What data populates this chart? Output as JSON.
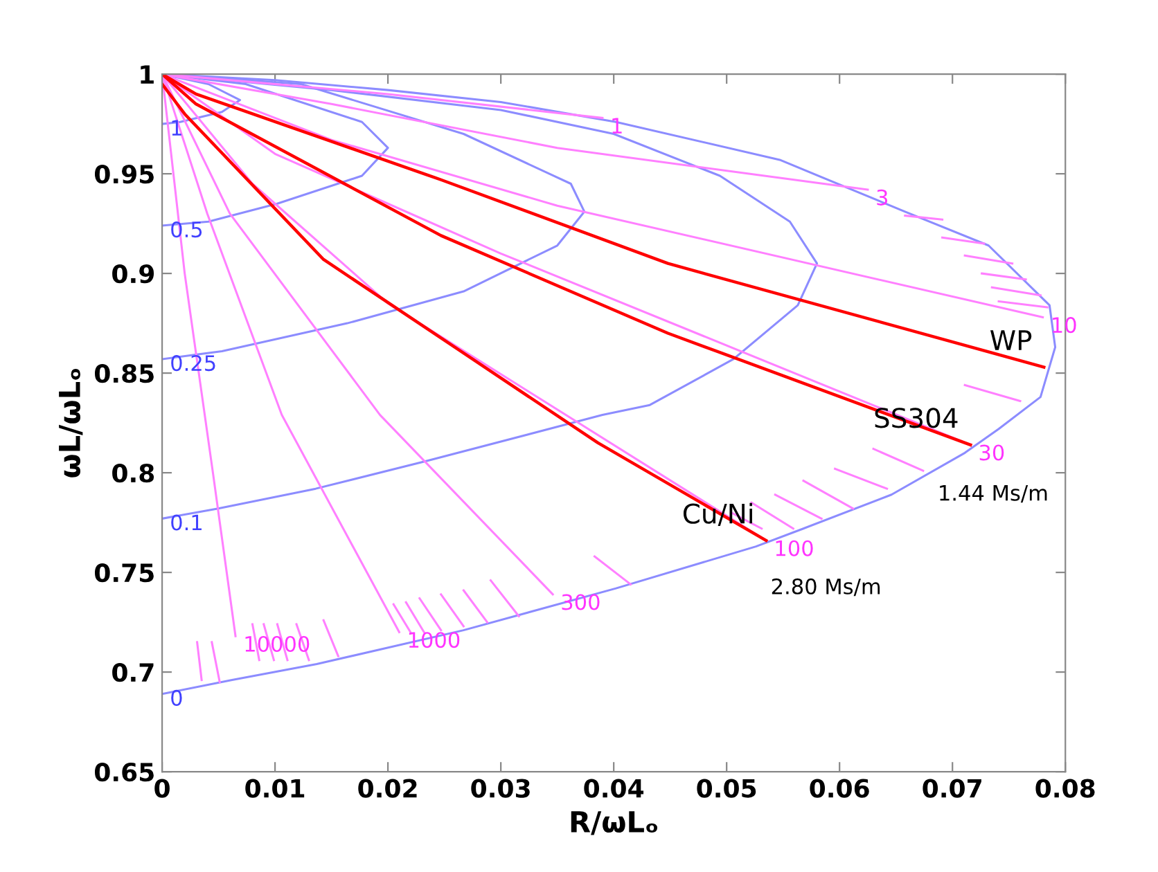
{
  "chart_data": {
    "type": "line",
    "xlabel": "R/ωLₒ",
    "ylabel": "ωL/ωLₒ",
    "xlim": [
      0,
      0.08
    ],
    "xticks": [
      0,
      0.01,
      0.02,
      0.03,
      0.04,
      0.05,
      0.06,
      0.07,
      0.08
    ],
    "ylim": [
      0.65,
      1
    ],
    "yticks": [
      0.65,
      0.7,
      0.75,
      0.8,
      0.85,
      0.9,
      0.95,
      1
    ],
    "grid": false,
    "legend": false,
    "marker": "none",
    "line_style": "solid",
    "series": [
      {
        "color": "#8c8cff",
        "name": "0",
        "x": [
          0,
          0.01,
          0.02,
          0.03,
          0.0402,
          0.0547,
          0.0658,
          0.0732,
          0.0786,
          0.0791,
          0.0778,
          0.0741,
          0.0711,
          0.0646,
          0.0568,
          0.0526,
          0.0402,
          0.0267,
          0.0137,
          0.0062,
          0
        ],
        "values": [
          1,
          0.997,
          0.992,
          0.986,
          0.976,
          0.957,
          0.931,
          0.914,
          0.884,
          0.863,
          0.838,
          0.822,
          0.81,
          0.789,
          0.772,
          0.763,
          0.742,
          0.721,
          0.704,
          0.696,
          0.689
        ]
      },
      {
        "color": "#8c8cff",
        "name": "0.1",
        "x": [
          0,
          0.015,
          0.03,
          0.04,
          0.0494,
          0.0556,
          0.058,
          0.0563,
          0.0506,
          0.0432,
          0.039,
          0.0235,
          0.0136,
          0.0049,
          0
        ],
        "values": [
          1,
          0.992,
          0.982,
          0.97,
          0.949,
          0.926,
          0.905,
          0.884,
          0.857,
          0.834,
          0.829,
          0.806,
          0.792,
          0.782,
          0.777
        ]
      },
      {
        "color": "#8c8cff",
        "name": "0.25",
        "x": [
          0,
          0.0123,
          0.0267,
          0.0362,
          0.0374,
          0.035,
          0.0267,
          0.0164,
          0.0053,
          0
        ],
        "values": [
          1,
          0.995,
          0.97,
          0.945,
          0.931,
          0.914,
          0.891,
          0.875,
          0.861,
          0.857
        ]
      },
      {
        "color": "#8c8cff",
        "name": "0.5",
        "x": [
          0,
          0.0074,
          0.0177,
          0.02,
          0.0177,
          0.0102,
          0.0041,
          0
        ],
        "values": [
          1,
          0.995,
          0.976,
          0.963,
          0.949,
          0.935,
          0.926,
          0.924
        ]
      },
      {
        "color": "#8c8cff",
        "name": "1",
        "x": [
          0,
          0.0041,
          0.0069,
          0.0053,
          0.0016,
          0
        ],
        "values": [
          1,
          0.995,
          0.987,
          0.981,
          0.976,
          0.975
        ]
      },
      {
        "color": "#ff80ff",
        "name": "1",
        "x": [
          0,
          0.02,
          0.039
        ],
        "values": [
          1,
          0.99,
          0.978
        ]
      },
      {
        "color": "#ff80ff",
        "name": "3",
        "x": [
          0,
          0.015,
          0.035,
          0.0625
        ],
        "values": [
          1,
          0.985,
          0.963,
          0.942
        ]
      },
      {
        "color": "#ff80ff",
        "name": "10",
        "x": [
          0,
          0.015,
          0.035,
          0.078
        ],
        "values": [
          1,
          0.967,
          0.934,
          0.878
        ]
      },
      {
        "color": "#ff80ff",
        "name": "30",
        "x": [
          0,
          0.01,
          0.03,
          0.0716
        ],
        "values": [
          1,
          0.96,
          0.91,
          0.814
        ]
      },
      {
        "color": "#ff80ff",
        "name": "100",
        "x": [
          0,
          0.008,
          0.02,
          0.0535
        ],
        "values": [
          1,
          0.945,
          0.885,
          0.766
        ]
      },
      {
        "color": "#ff80ff",
        "name": "300",
        "x": [
          0,
          0.006,
          0.0193,
          0.0346
        ],
        "values": [
          1,
          0.93,
          0.829,
          0.739
        ]
      },
      {
        "color": "#ff80ff",
        "name": "1000",
        "x": [
          0,
          0.004,
          0.0106,
          0.021
        ],
        "values": [
          1,
          0.93,
          0.829,
          0.72
        ]
      },
      {
        "color": "#ff80ff",
        "name": "10000",
        "x": [
          0,
          0.002,
          0.0045,
          0.0065
        ],
        "values": [
          1,
          0.9,
          0.8,
          0.718
        ]
      },
      {
        "color": "#ff80ff",
        "x": [
          0.0658,
          0.0691,
          null,
          0.0691,
          0.0728,
          null,
          0.0711,
          0.0753,
          null,
          0.0726,
          0.0765,
          null,
          0.0735,
          0.0778,
          null,
          0.0741,
          0.0784,
          null,
          0.0711,
          0.076,
          null,
          0.063,
          0.0674,
          null,
          0.0596,
          0.0642,
          null,
          0.0568,
          0.0612,
          null,
          0.0543,
          0.0584,
          null,
          0.0522,
          0.0559,
          null,
          0.0504,
          0.0531,
          null,
          0.0383,
          0.0415,
          null,
          0.0291,
          0.0316,
          null,
          0.0267,
          0.0288,
          null,
          0.0247,
          0.0267,
          null,
          0.0228,
          0.0247,
          null,
          0.0216,
          0.0232,
          null,
          0.0205,
          0.022,
          null,
          0.0143,
          0.0156,
          null,
          0.0119,
          0.013,
          null,
          0.0102,
          0.0111,
          null,
          0.009,
          0.0099,
          null,
          0.008,
          0.0086,
          null,
          0.0031,
          0.0035,
          null,
          0.0044,
          0.0051
        ],
        "values": [
          0.929,
          0.927,
          null,
          0.918,
          0.915,
          null,
          0.909,
          0.905,
          null,
          0.9,
          0.897,
          null,
          0.893,
          0.889,
          null,
          0.886,
          0.883,
          null,
          0.844,
          0.836,
          null,
          0.812,
          0.801,
          null,
          0.802,
          0.792,
          null,
          0.796,
          0.782,
          null,
          0.789,
          0.777,
          null,
          0.785,
          0.772,
          null,
          0.78,
          0.772,
          null,
          0.758,
          0.744,
          null,
          0.746,
          0.728,
          null,
          0.741,
          0.725,
          null,
          0.739,
          0.723,
          null,
          0.737,
          0.721,
          null,
          0.735,
          0.72,
          null,
          0.734,
          0.72,
          null,
          0.726,
          0.708,
          null,
          0.724,
          0.706,
          null,
          0.724,
          0.706,
          null,
          0.724,
          0.706,
          null,
          0.724,
          0.706,
          null,
          0.715,
          0.696,
          null,
          0.715,
          0.695
        ]
      },
      {
        "color": "#ff0000",
        "name": "WP",
        "x": [
          0,
          0.003,
          0.0247,
          0.0448,
          0.0781
        ],
        "values": [
          1,
          0.99,
          0.947,
          0.905,
          0.853
        ]
      },
      {
        "color": "#ff0000",
        "name": "SS304",
        "x": [
          0,
          0.003,
          0.0247,
          0.0448,
          0.0716
        ],
        "values": [
          1,
          0.985,
          0.919,
          0.87,
          0.814
        ]
      },
      {
        "color": "#ff0000",
        "name": "Cu/Ni",
        "x": [
          0,
          0.002,
          0.0143,
          0.0386,
          0.0535
        ],
        "values": [
          0.995,
          0.98,
          0.907,
          0.815,
          0.766
        ]
      }
    ],
    "annotations": [
      "1.44 Ms/m",
      "2.80 Ms/m"
    ]
  }
}
